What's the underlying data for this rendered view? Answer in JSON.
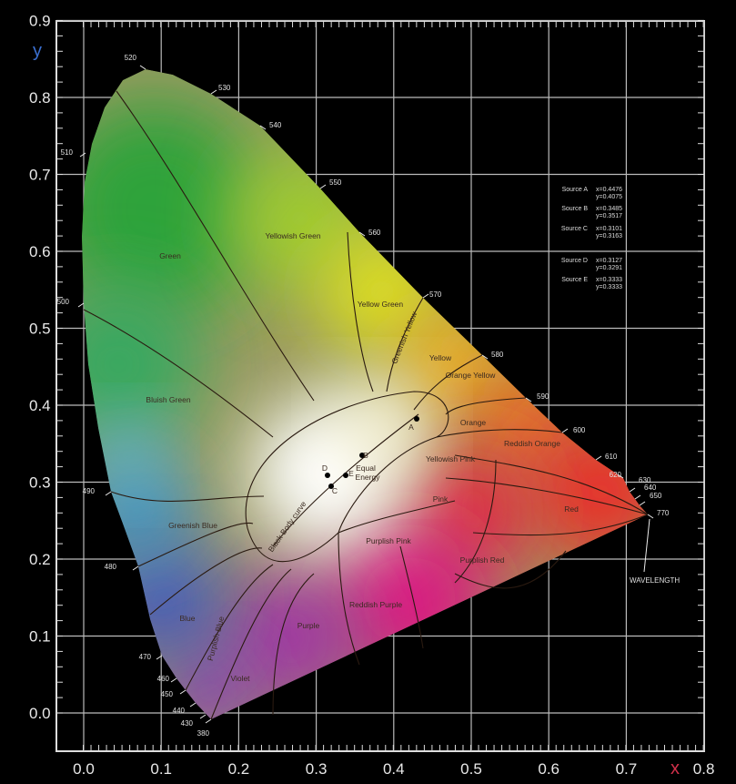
{
  "axes": {
    "x_label": "x",
    "y_label": "y",
    "x_ticks": [
      "0.0",
      "0.1",
      "0.2",
      "0.3",
      "0.4",
      "0.5",
      "0.6",
      "0.7",
      "0.8"
    ],
    "y_ticks": [
      "0.0",
      "0.1",
      "0.2",
      "0.3",
      "0.4",
      "0.5",
      "0.6",
      "0.7",
      "0.8",
      "0.9"
    ],
    "x_label_color": "#d0304a",
    "y_label_color": "#3a6fd0"
  },
  "wavelengths": [
    "380",
    "430",
    "440",
    "450",
    "460",
    "470",
    "480",
    "490",
    "500",
    "510",
    "520",
    "530",
    "540",
    "550",
    "560",
    "570",
    "580",
    "590",
    "600",
    "610",
    "620",
    "630",
    "640",
    "650",
    "770"
  ],
  "wavelength_caption": "WAVELENGTH",
  "regions": [
    "Green",
    "Yellowish Green",
    "Yellow Green",
    "Greenish Yellow",
    "Yellow",
    "Orange Yellow",
    "Orange",
    "Reddish Orange",
    "Red",
    "Yellowish Pink",
    "Pink",
    "Purplish Pink",
    "Purplish Red",
    "Reddish Purple",
    "Purple",
    "Violet",
    "Purplish Blue",
    "Blue",
    "Greenish Blue",
    "Bluish Green"
  ],
  "black_body_label": "Black Body curve",
  "equal_energy_label": [
    "Equal",
    "Energy"
  ],
  "points": [
    "A",
    "B",
    "C",
    "D",
    "E"
  ],
  "sources": [
    {
      "name": "Source A",
      "x": "x=0.4476",
      "y": "y=0.4075"
    },
    {
      "name": "Source B",
      "x": "x=0.3485",
      "y": "y=0.3517"
    },
    {
      "name": "Source C",
      "x": "x=0.3101",
      "y": "y=0.3163"
    },
    {
      "name": "Source D",
      "x": "x=0.3127",
      "y": "y=0.3291"
    },
    {
      "name": "Source E",
      "x": "x=0.3333",
      "y": "y=0.3333"
    }
  ]
}
